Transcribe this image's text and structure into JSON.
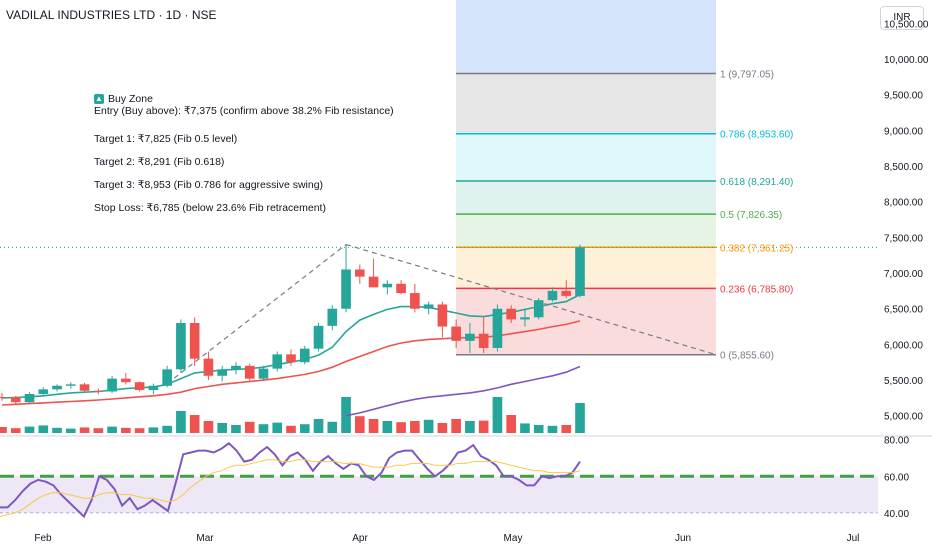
{
  "header": {
    "title": "VADILAL INDUSTRIES LTD · 1D · NSE"
  },
  "currency_button": "INR",
  "note": {
    "icon": "buy-zone-icon",
    "heading": "Buy Zone",
    "lines": [
      "Entry (Buy above): ₹7,375 (confirm above 38.2% Fib resistance)",
      "Target 1: ₹7,825 (Fib 0.5 level)",
      "Target 2: ₹8,291 (Fib 0.618)",
      "Target 3: ₹8,953 (Fib 0.786 for aggressive swing)",
      "Stop Loss: ₹6,785 (below 23.6% Fib retracement)"
    ]
  },
  "colors": {
    "up": "#26a69a",
    "down": "#ef5350",
    "ema_fast": "#26a69a",
    "ema_slow": "#ef5350",
    "ema_long": "#7e57c2",
    "rsi": "#7e57c2",
    "rsi_ma": "#f7c948",
    "rsi_band": "#ede7f6",
    "rsi_level": "#43a047"
  },
  "chart_data": {
    "type": "candlestick",
    "y_axis_ticks": [
      "10,500.00",
      "10,000.00",
      "9,500.00",
      "9,000.00",
      "8,500.00",
      "8,000.00",
      "7,500.00",
      "7,000.00",
      "6,500.00",
      "6,000.00",
      "5,500.00",
      "5,000.00"
    ],
    "ylim": [
      4800,
      10800
    ],
    "x_axis_labels": [
      "Feb",
      "Mar",
      "Apr",
      "May",
      "Jun",
      "Jul"
    ],
    "fib_levels": [
      {
        "label": "1 (9,797.05)",
        "value": 9797.05,
        "color": "#787b86",
        "fill": "#e6e6e6"
      },
      {
        "label": "0.786 (8,953.60)",
        "value": 8953.6,
        "color": "#00bcd4",
        "fill": "#e0f7f9"
      },
      {
        "label": "0.618 (8,291.40)",
        "value": 8291.4,
        "color": "#26a69a",
        "fill": "#def2ef"
      },
      {
        "label": "0.5 (7,826.35)",
        "value": 7826.35,
        "color": "#4caf50",
        "fill": "#e6f4e4"
      },
      {
        "label": "0.382 (7,361.25)",
        "value": 7361.25,
        "color": "#ff9800",
        "fill": "#fff0d9"
      },
      {
        "label": "0.236 (6,785.80)",
        "value": 6785.8,
        "color": "#f23645",
        "fill": "#fbdcdc"
      },
      {
        "label": "0 (5,855.60)",
        "value": 5855.6,
        "color": "#787b86",
        "fill": ""
      }
    ],
    "fib_top_fill": "#d6e4fc",
    "candles": [
      [
        5262,
        5320,
        5210,
        5260
      ],
      [
        5260,
        5280,
        5150,
        5190
      ],
      [
        5190,
        5330,
        5170,
        5305
      ],
      [
        5305,
        5400,
        5280,
        5370
      ],
      [
        5370,
        5440,
        5340,
        5420
      ],
      [
        5420,
        5470,
        5380,
        5440
      ],
      [
        5440,
        5460,
        5330,
        5350
      ],
      [
        5350,
        5380,
        5300,
        5340
      ],
      [
        5340,
        5560,
        5320,
        5520
      ],
      [
        5520,
        5600,
        5440,
        5470
      ],
      [
        5470,
        5480,
        5340,
        5360
      ],
      [
        5360,
        5450,
        5300,
        5420
      ],
      [
        5420,
        5700,
        5400,
        5650
      ],
      [
        5650,
        6350,
        5600,
        6300
      ],
      [
        6300,
        6380,
        5700,
        5800
      ],
      [
        5800,
        5900,
        5500,
        5560
      ],
      [
        5560,
        5700,
        5480,
        5650
      ],
      [
        5650,
        5750,
        5580,
        5700
      ],
      [
        5700,
        5730,
        5480,
        5520
      ],
      [
        5520,
        5700,
        5500,
        5660
      ],
      [
        5660,
        5900,
        5620,
        5860
      ],
      [
        5860,
        5930,
        5700,
        5750
      ],
      [
        5750,
        5980,
        5720,
        5940
      ],
      [
        5940,
        6300,
        5900,
        6260
      ],
      [
        6260,
        6550,
        6200,
        6500
      ],
      [
        6500,
        7400,
        6450,
        7050
      ],
      [
        7050,
        7120,
        6850,
        6950
      ],
      [
        6950,
        7200,
        6850,
        6800
      ],
      [
        6800,
        6900,
        6700,
        6850
      ],
      [
        6850,
        6900,
        6700,
        6720
      ],
      [
        6720,
        6850,
        6450,
        6500
      ],
      [
        6500,
        6600,
        6420,
        6560
      ],
      [
        6560,
        6600,
        6100,
        6250
      ],
      [
        6250,
        6350,
        5950,
        6050
      ],
      [
        6050,
        6300,
        5880,
        6150
      ],
      [
        6150,
        6400,
        5880,
        5950
      ],
      [
        5950,
        6560,
        5900,
        6500
      ],
      [
        6500,
        6550,
        6300,
        6350
      ],
      [
        6350,
        6500,
        6250,
        6380
      ],
      [
        6380,
        6650,
        6350,
        6620
      ],
      [
        6620,
        6800,
        6600,
        6750
      ],
      [
        6750,
        6900,
        6650,
        6680
      ],
      [
        6680,
        7400,
        6660,
        7360
      ]
    ],
    "volume_relative": [
      0.15,
      0.12,
      0.16,
      0.19,
      0.13,
      0.11,
      0.14,
      0.12,
      0.16,
      0.13,
      0.12,
      0.14,
      0.18,
      0.55,
      0.45,
      0.3,
      0.25,
      0.2,
      0.28,
      0.22,
      0.26,
      0.18,
      0.22,
      0.35,
      0.28,
      0.9,
      0.42,
      0.35,
      0.3,
      0.27,
      0.3,
      0.33,
      0.25,
      0.35,
      0.3,
      0.31,
      0.9,
      0.45,
      0.24,
      0.2,
      0.18,
      0.2,
      0.75
    ],
    "ema_series": [
      {
        "name": "",
        "color": "#26a69a",
        "values": [
          5250,
          5255,
          5265,
          5280,
          5300,
          5320,
          5330,
          5340,
          5360,
          5380,
          5395,
          5400,
          5440,
          5520,
          5600,
          5620,
          5640,
          5650,
          5660,
          5680,
          5720,
          5750,
          5790,
          5850,
          5960,
          6180,
          6340,
          6420,
          6490,
          6530,
          6530,
          6520,
          6480,
          6440,
          6400,
          6390,
          6420,
          6450,
          6490,
          6530,
          6570,
          6600,
          6700
        ]
      },
      {
        "name": "",
        "color": "#ef5350",
        "values": [
          5150,
          5160,
          5170,
          5180,
          5190,
          5200,
          5210,
          5220,
          5235,
          5250,
          5265,
          5280,
          5300,
          5330,
          5380,
          5410,
          5440,
          5460,
          5480,
          5500,
          5520,
          5550,
          5580,
          5620,
          5680,
          5760,
          5830,
          5900,
          5970,
          6020,
          6050,
          6070,
          6080,
          6090,
          6095,
          6100,
          6120,
          6150,
          6180,
          6210,
          6250,
          6280,
          6330
        ]
      },
      {
        "name": "",
        "color": "#7e57c2",
        "values": [
          null,
          null,
          null,
          null,
          null,
          null,
          null,
          null,
          null,
          null,
          null,
          null,
          null,
          null,
          null,
          null,
          null,
          null,
          null,
          null,
          null,
          null,
          null,
          null,
          null,
          5000,
          5040,
          5090,
          5140,
          5190,
          5230,
          5260,
          5280,
          5300,
          5320,
          5350,
          5390,
          5440,
          5480,
          5520,
          5560,
          5610,
          5690
        ]
      }
    ],
    "rsi": {
      "levels": [
        "80.00",
        "60.00",
        "40.00"
      ],
      "ylim": [
        35,
        82
      ],
      "band": [
        40,
        60
      ],
      "series": [
        {
          "name": "",
          "color": "#7e57c2",
          "values": [
            43,
            43,
            47,
            52,
            56,
            58,
            57,
            55,
            50,
            46,
            42,
            38,
            47,
            60,
            58,
            53,
            44,
            48,
            42,
            44,
            47,
            44,
            41,
            56,
            72,
            73,
            74,
            74,
            73,
            75,
            78,
            74,
            68,
            69,
            73,
            76,
            72,
            66,
            71,
            73,
            69,
            63,
            68,
            71,
            67,
            64,
            67,
            66,
            60,
            58,
            62,
            70,
            73,
            74,
            74,
            69,
            64,
            60,
            63,
            67,
            73,
            74,
            77,
            71,
            69,
            66,
            60,
            60,
            58,
            55,
            55,
            60,
            59,
            60,
            60,
            62,
            68
          ]
        },
        {
          "name": "",
          "color": "#f7c948",
          "values": [
            38,
            39,
            40,
            42,
            45,
            48,
            50,
            51,
            51,
            50,
            49,
            48,
            48,
            50,
            51,
            51,
            50,
            50,
            49,
            48,
            48,
            47,
            46,
            47,
            50,
            54,
            57,
            60,
            62,
            63,
            65,
            66,
            66,
            67,
            68,
            69,
            69,
            68,
            68,
            69,
            69,
            68,
            68,
            68,
            68,
            67,
            67,
            67,
            66,
            65,
            65,
            65,
            66,
            66,
            67,
            67,
            67,
            66,
            66,
            66,
            67,
            67,
            68,
            68,
            68,
            68,
            67,
            66,
            65,
            64,
            63,
            63,
            62,
            62,
            62,
            62,
            63
          ]
        }
      ]
    }
  }
}
